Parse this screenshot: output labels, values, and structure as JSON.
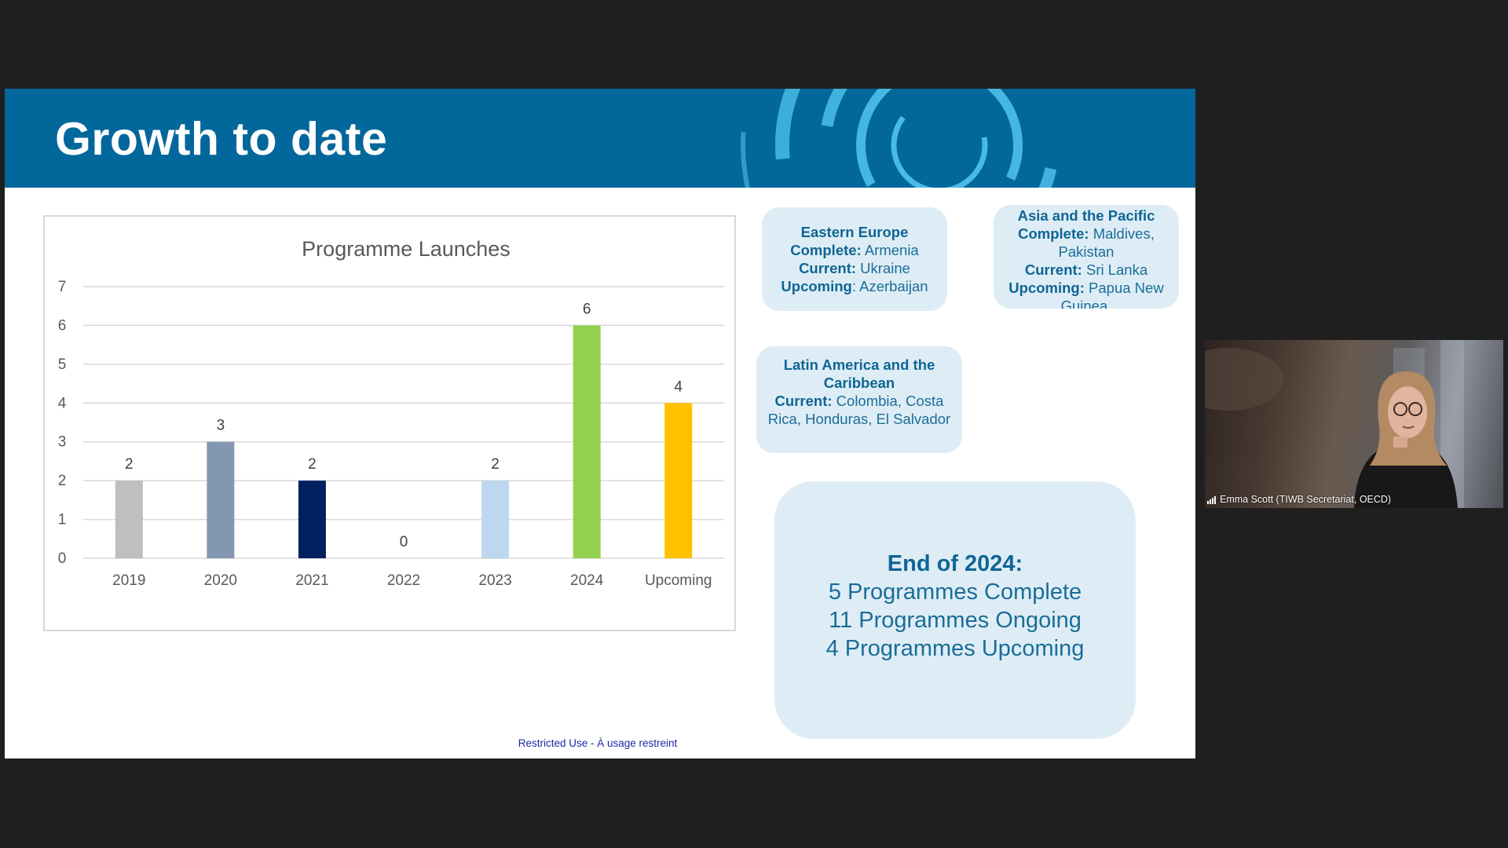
{
  "slide": {
    "title": "Growth to date",
    "footer": "Restricted Use - À usage restreint"
  },
  "chart_data": {
    "type": "bar",
    "title": "Programme Launches",
    "categories": [
      "2019",
      "2020",
      "2021",
      "2022",
      "2023",
      "2024",
      "Upcoming"
    ],
    "values": [
      2,
      3,
      2,
      0,
      2,
      6,
      4
    ],
    "data_labels": [
      "2",
      "3",
      "2",
      "0",
      "2",
      "6",
      "4"
    ],
    "colors": [
      "#bfbfbf",
      "#8497b0",
      "#002060",
      "#8497b0",
      "#bdd7ee",
      "#92d050",
      "#ffc000"
    ],
    "ylim": [
      0,
      7
    ],
    "yticks": [
      "0",
      "1",
      "2",
      "3",
      "4",
      "5",
      "6",
      "7"
    ],
    "grid": true,
    "legend": "none",
    "xlabel": "",
    "ylabel": ""
  },
  "regions": {
    "eastern_europe": {
      "title": "Eastern Europe",
      "complete_label": "Complete:",
      "complete_value": " Armenia",
      "current_label": "Current:",
      "current_value": " Ukraine",
      "upcoming_label": "Upcoming",
      "upcoming_value": ": Azerbaijan"
    },
    "asia_pacific": {
      "title": "Asia and the Pacific",
      "complete_label": "Complete:",
      "complete_value": " Maldives, Pakistan",
      "current_label": "Current:",
      "current_value": " Sri Lanka",
      "upcoming_label": "Upcoming:",
      "upcoming_value": " Papua New Guinea,"
    },
    "latin_america": {
      "title": "Latin America and the Caribbean",
      "current_label": "Current:",
      "current_value": " Colombia, Costa Rica, Honduras, El Salvador"
    }
  },
  "summary": {
    "heading": "End of 2024:",
    "complete": "5 Programmes Complete",
    "ongoing": "11 Programmes Ongoing",
    "upcoming": "4 Programmes Upcoming"
  },
  "video": {
    "participant_name": "Emma Scott (TIWB Secretariat, OECD)",
    "signal_icon": "signal-bars-icon"
  },
  "colors": {
    "header_blue": "#02679b",
    "ring_light": "#4cc0e8",
    "box_fill": "#deedf5",
    "box_text": "#0f6594",
    "footer_text": "#1c2aa0"
  }
}
